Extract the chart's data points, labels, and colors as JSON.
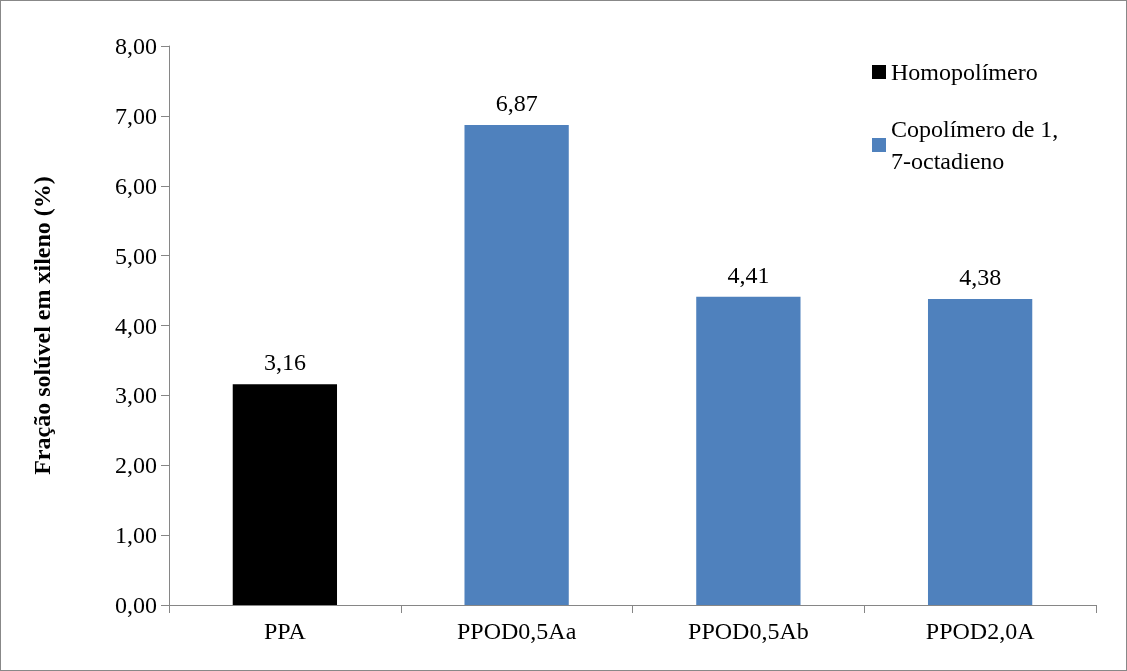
{
  "chart_data": {
    "type": "bar",
    "ylabel": "Fração solúvel em xileno (%)",
    "categories": [
      "PPA",
      "PPOD0,5Aa",
      "PPOD0,5Ab",
      "PPOD2,0A"
    ],
    "series": [
      {
        "name": "Homopolímero",
        "color": "#000000",
        "values": [
          3.16,
          null,
          null,
          null
        ],
        "value_labels": [
          "3,16",
          null,
          null,
          null
        ]
      },
      {
        "name": "Copolímero de 1,7-octadieno",
        "color": "#4f81bd",
        "values": [
          null,
          6.87,
          4.41,
          4.38
        ],
        "value_labels": [
          null,
          "6,87",
          "4,41",
          "4,38"
        ]
      }
    ],
    "ylim": [
      0,
      8
    ],
    "yticks": [
      {
        "value": 0,
        "label": "0,00"
      },
      {
        "value": 1,
        "label": "1,00"
      },
      {
        "value": 2,
        "label": "2,00"
      },
      {
        "value": 3,
        "label": "3,00"
      },
      {
        "value": 4,
        "label": "4,00"
      },
      {
        "value": 5,
        "label": "5,00"
      },
      {
        "value": 6,
        "label": "6,00"
      },
      {
        "value": 7,
        "label": "7,00"
      },
      {
        "value": 8,
        "label": "8,00"
      }
    ],
    "grid": false,
    "legend": "top right"
  }
}
